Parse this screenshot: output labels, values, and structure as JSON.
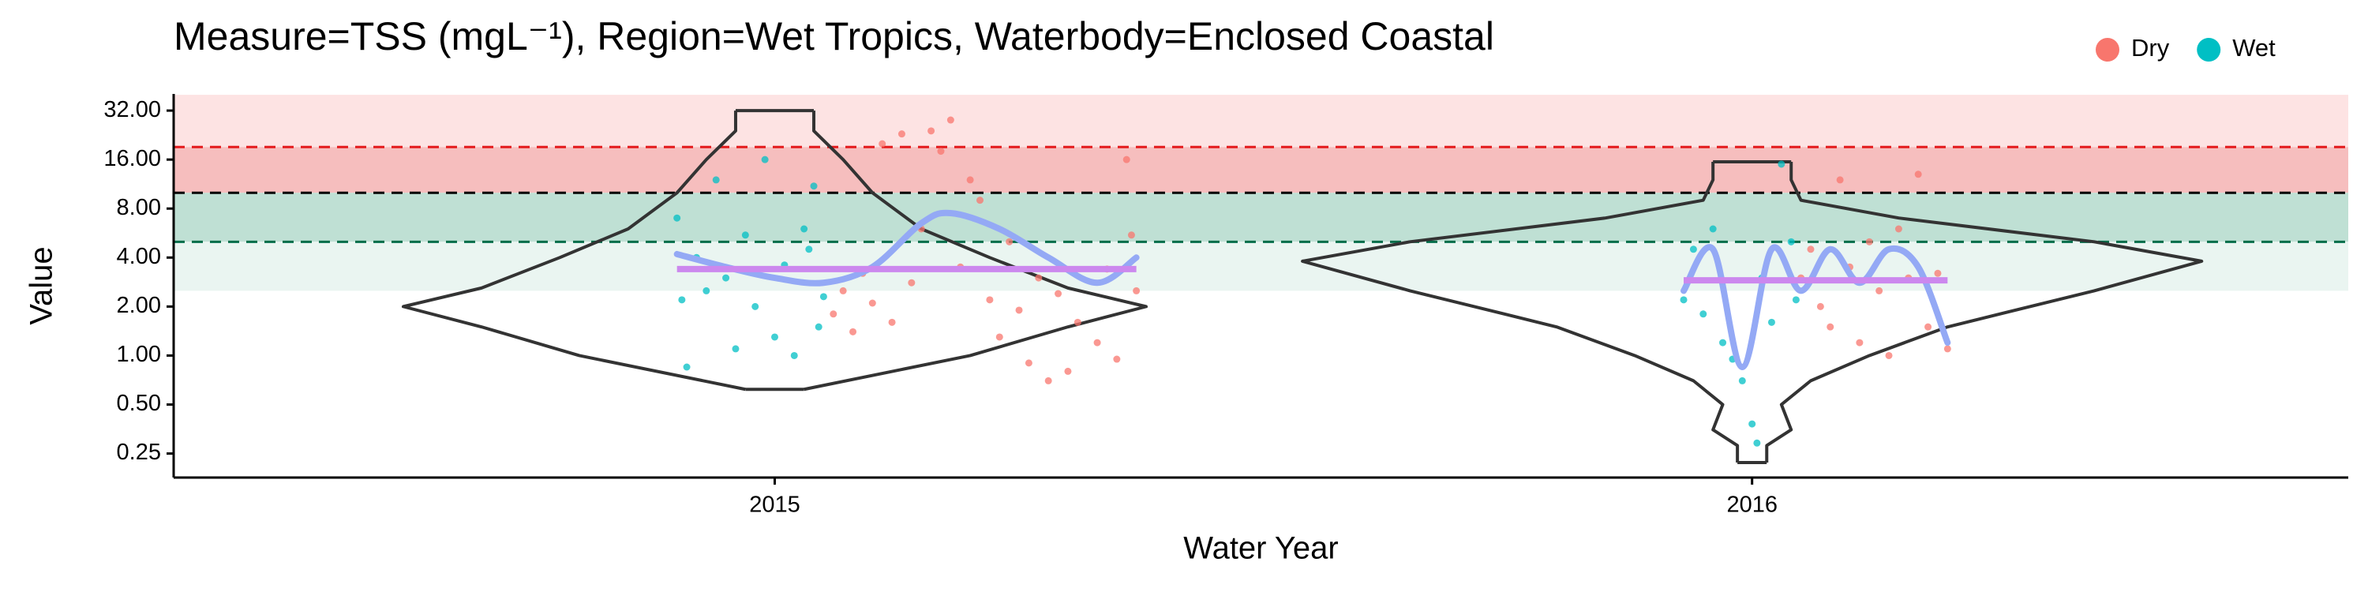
{
  "chart_data": {
    "type": "violin",
    "title": "Measure=TSS (mgL⁻¹), Region=Wet Tropics, Waterbody=Enclosed Coastal",
    "x_label": "Water Year",
    "y_label": "Value",
    "log_scale_y": true,
    "xlim": [
      2014.385,
      2016.61
    ],
    "xticks": [
      2015,
      2016
    ],
    "ylim": [
      0.178,
      40.5
    ],
    "yticks": [
      {
        "value": 0.25,
        "label": "0.25"
      },
      {
        "value": 0.5,
        "label": "0.50"
      },
      {
        "value": 1,
        "label": "1.00"
      },
      {
        "value": 2,
        "label": "2.00"
      },
      {
        "value": 4,
        "label": "4.00"
      },
      {
        "value": 8,
        "label": "8.00"
      },
      {
        "value": 16,
        "label": "16.00"
      },
      {
        "value": 32,
        "label": "32.00"
      }
    ],
    "legend_position": "top-right",
    "bands": [
      {
        "range": [
          19.1,
          40
        ],
        "color": "#fde3e3"
      },
      {
        "range": [
          10,
          19.1
        ],
        "color": "#f6bebe"
      },
      {
        "range": [
          5,
          10
        ],
        "color": "#bfe0d4"
      },
      {
        "range": [
          2.5,
          5
        ],
        "color": "#eaf5f1"
      }
    ],
    "thresholds": [
      {
        "value": 19.1,
        "color": "#e41a1c"
      },
      {
        "value": 10,
        "color": "#000000"
      },
      {
        "value": 5,
        "color": "#006d4a"
      }
    ],
    "violins": [
      {
        "x": 2015,
        "y": [
          0.62,
          1,
          1.5,
          2,
          2.6,
          4,
          6,
          10,
          16,
          24,
          32
        ],
        "half_width": [
          0.03,
          0.2,
          0.3,
          0.38,
          0.3,
          0.22,
          0.15,
          0.1,
          0.07,
          0.04,
          0.04
        ]
      },
      {
        "x": 2016,
        "y": [
          0.22,
          0.28,
          0.35,
          0.5,
          0.7,
          1,
          1.5,
          2.5,
          3.8,
          5,
          7,
          9,
          12,
          15.5
        ],
        "half_width": [
          0.015,
          0.015,
          0.04,
          0.03,
          0.06,
          0.12,
          0.2,
          0.35,
          0.46,
          0.35,
          0.15,
          0.05,
          0.04,
          0.04
        ]
      }
    ],
    "series": [
      {
        "name": "Dry",
        "color": "#F8766D",
        "x": [
          2015.06,
          2015.07,
          2015.08,
          2015.09,
          2015.1,
          2015.11,
          2015.12,
          2015.13,
          2015.14,
          2015.15,
          2015.16,
          2015.17,
          2015.18,
          2015.19,
          2015.2,
          2015.21,
          2015.22,
          2015.23,
          2015.24,
          2015.25,
          2015.26,
          2015.27,
          2015.28,
          2015.29,
          2015.3,
          2015.31,
          2015.33,
          2015.34,
          2015.35,
          2015.36,
          2015.37,
          2015.365,
          2016.05,
          2016.06,
          2016.07,
          2016.08,
          2016.09,
          2016.1,
          2016.11,
          2016.12,
          2016.13,
          2016.14,
          2016.15,
          2016.16,
          2016.17,
          2016.18,
          2016.19,
          2016.2
        ],
        "values": [
          1.8,
          2.5,
          1.4,
          3.2,
          2.1,
          20,
          1.6,
          23,
          2.8,
          6,
          24,
          18,
          28,
          3.5,
          12,
          9,
          2.2,
          1.3,
          5,
          1.9,
          0.9,
          3,
          0.7,
          2.4,
          0.8,
          1.6,
          1.2,
          3.4,
          0.95,
          16,
          2.5,
          5.5,
          3,
          4.5,
          2,
          1.5,
          12,
          3.5,
          1.2,
          5,
          2.5,
          1,
          6,
          3,
          13,
          1.5,
          3.2,
          1.1
        ]
      },
      {
        "name": "Wet",
        "color": "#00BFC4",
        "x": [
          2014.9,
          2014.905,
          2014.91,
          2014.92,
          2014.93,
          2014.94,
          2014.95,
          2014.96,
          2014.97,
          2014.98,
          2014.99,
          2015.0,
          2015.01,
          2015.02,
          2015.03,
          2015.04,
          2015.05,
          2015.045,
          2015.035,
          2015.93,
          2015.94,
          2015.95,
          2015.96,
          2015.97,
          2015.98,
          2015.99,
          2016.0,
          2016.005,
          2016.01,
          2016.02,
          2016.03,
          2016.04,
          2016.045
        ],
        "values": [
          7,
          2.2,
          0.85,
          4,
          2.5,
          12,
          3,
          1.1,
          5.5,
          2,
          16,
          1.3,
          3.6,
          1.0,
          6,
          11,
          2.3,
          1.5,
          4.5,
          2.2,
          4.5,
          1.8,
          6,
          1.2,
          0.95,
          0.7,
          0.38,
          0.29,
          3,
          1.6,
          15,
          5,
          2.2
        ]
      }
    ],
    "smooth_color": "#94a9f5",
    "smooth": [
      {
        "x": [
          2014.9,
          2014.95,
          2015.0,
          2015.05,
          2015.1,
          2015.15,
          2015.18,
          2015.23,
          2015.28,
          2015.33,
          2015.37
        ],
        "values": [
          4.2,
          3.5,
          3.0,
          2.8,
          3.5,
          6.5,
          7.5,
          6,
          4,
          2.8,
          4.0
        ]
      },
      {
        "x": [
          2015.93,
          2015.96,
          2015.99,
          2016.02,
          2016.05,
          2016.08,
          2016.11,
          2016.14,
          2016.17,
          2016.2
        ],
        "values": [
          2.5,
          4.5,
          0.85,
          4.5,
          2.5,
          4.5,
          2.8,
          4.5,
          3.5,
          1.2
        ]
      }
    ],
    "mean_color": "#cc88ee",
    "means": [
      {
        "x": [
          2014.9,
          2015.37
        ],
        "value": 3.4
      },
      {
        "x": [
          2015.93,
          2016.2
        ],
        "value": 2.9
      }
    ]
  }
}
